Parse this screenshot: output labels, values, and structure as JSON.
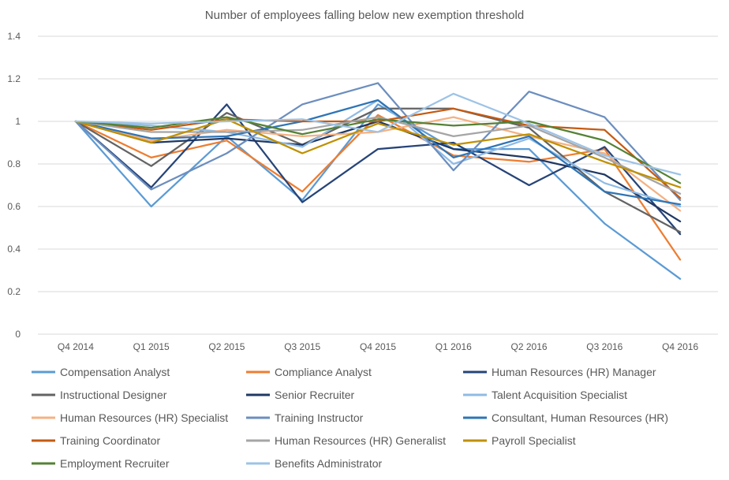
{
  "chart_data": {
    "type": "line",
    "title": "Number of employees falling below new exemption threshold",
    "xlabel": "",
    "ylabel": "",
    "categories": [
      "Q4 2014",
      "Q1 2015",
      "Q2 2015",
      "Q3 2015",
      "Q4 2015",
      "Q1 2016",
      "Q2 2016",
      "Q3 2016",
      "Q4 2016"
    ],
    "ylim": [
      0,
      1.4
    ],
    "yticks": [
      "0",
      "0.2",
      "0.4",
      "0.6",
      "0.8",
      "1",
      "1.2",
      "1.4"
    ],
    "grid": true,
    "legend_position": "bottom",
    "series": [
      {
        "name": "Compensation Analyst",
        "color": "#5B9BD5",
        "values": [
          1,
          0.6,
          0.93,
          0.63,
          1.08,
          0.87,
          0.87,
          0.52,
          0.26
        ]
      },
      {
        "name": "Compliance Analyst",
        "color": "#ED7D31",
        "values": [
          1,
          0.83,
          0.91,
          0.67,
          1.03,
          0.84,
          0.81,
          0.87,
          0.35
        ]
      },
      {
        "name": "Human Resources (HR) Manager",
        "color": "#264478",
        "values": [
          1,
          0.69,
          1.08,
          0.62,
          0.87,
          0.9,
          0.7,
          0.88,
          0.47
        ]
      },
      {
        "name": "Instructional Designer",
        "color": "#636363",
        "values": [
          1,
          0.79,
          1.04,
          0.89,
          1.06,
          1.06,
          0.97,
          0.67,
          0.48
        ]
      },
      {
        "name": "Senior Recruiter",
        "color": "#1F3864",
        "values": [
          1,
          0.9,
          0.92,
          0.89,
          1.0,
          0.87,
          0.83,
          0.75,
          0.53
        ]
      },
      {
        "name": "Talent Acquisition Specialist",
        "color": "#8FBBE5",
        "values": [
          1,
          0.98,
          0.95,
          0.88,
          1.1,
          0.8,
          0.92,
          0.71,
          0.6
        ]
      },
      {
        "name": "Human Resources (HR) Specialist",
        "color": "#F4B183",
        "values": [
          1,
          0.91,
          0.96,
          0.93,
          0.95,
          1.02,
          0.93,
          0.85,
          0.58
        ]
      },
      {
        "name": "Training Instructor",
        "color": "#6C8EBF",
        "values": [
          1,
          0.68,
          0.85,
          1.08,
          1.18,
          0.77,
          1.14,
          1.02,
          0.63
        ]
      },
      {
        "name": "Consultant, Human Resources (HR)",
        "color": "#2E75B6",
        "values": [
          1,
          0.92,
          0.93,
          1.0,
          1.1,
          0.83,
          0.93,
          0.67,
          0.61
        ]
      },
      {
        "name": "Training Coordinator",
        "color": "#C55A11",
        "values": [
          1,
          0.96,
          1.01,
          1.0,
          1.0,
          1.06,
          0.98,
          0.96,
          0.64
        ]
      },
      {
        "name": "Human Resources (HR) Generalist",
        "color": "#A5A5A5",
        "values": [
          1,
          0.95,
          0.95,
          0.96,
          1.02,
          0.93,
          0.98,
          0.83,
          0.66
        ]
      },
      {
        "name": "Payroll Specialist",
        "color": "#BF9000",
        "values": [
          1,
          0.9,
          1.01,
          0.85,
          0.99,
          0.89,
          0.94,
          0.81,
          0.69
        ]
      },
      {
        "name": "Employment Recruiter",
        "color": "#548235",
        "values": [
          1,
          0.97,
          1.02,
          0.94,
          1.01,
          0.98,
          1.0,
          0.91,
          0.71
        ]
      },
      {
        "name": "Benefits Administrator",
        "color": "#9DC3E6",
        "values": [
          1,
          0.99,
          1.0,
          1.01,
          0.95,
          1.13,
          0.99,
          0.84,
          0.75
        ]
      }
    ]
  }
}
